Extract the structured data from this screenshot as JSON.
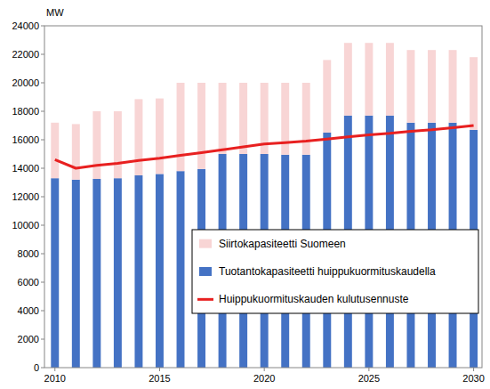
{
  "chart_data": {
    "type": "bar",
    "stacked": true,
    "y_label": "MW",
    "x": [
      2010,
      2011,
      2012,
      2013,
      2014,
      2015,
      2016,
      2017,
      2018,
      2019,
      2020,
      2021,
      2022,
      2023,
      2024,
      2025,
      2026,
      2027,
      2028,
      2029,
      2030
    ],
    "xlim": [
      2009.5,
      2030.4
    ],
    "xticks": [
      2010,
      2015,
      2020,
      2025,
      2030
    ],
    "ylim": [
      0,
      24000
    ],
    "yticks": [
      0,
      2000,
      4000,
      6000,
      8000,
      10000,
      12000,
      14000,
      16000,
      18000,
      20000,
      22000,
      24000
    ],
    "grid": false,
    "legend": "right",
    "series": [
      {
        "name": "Siirtokapasiteetti Suomeen",
        "type": "bar",
        "color": "#f8d5d5",
        "values": [
          3900,
          3900,
          4750,
          4700,
          5350,
          5300,
          6200,
          6050,
          5000,
          5000,
          5000,
          5050,
          5050,
          5100,
          5100,
          5100,
          5100,
          5100,
          5100,
          5100,
          5100
        ]
      },
      {
        "name": "Tuotantokapasiteetti huippukuormituskaudella",
        "type": "bar",
        "color": "#4472c4",
        "values": [
          13300,
          13200,
          13250,
          13300,
          13500,
          13600,
          13800,
          13950,
          15000,
          15000,
          15000,
          14950,
          14950,
          16500,
          17700,
          17700,
          17700,
          17200,
          17200,
          17200,
          16700
        ]
      },
      {
        "name": "Huippukuormituskauden kulutusennuste",
        "type": "line",
        "color": "#e82020",
        "values": [
          14600,
          14000,
          14200,
          14350,
          14550,
          14700,
          14900,
          15100,
          15300,
          15500,
          15700,
          15800,
          15900,
          16050,
          16200,
          16350,
          16450,
          16600,
          16700,
          16850,
          17000
        ]
      }
    ]
  }
}
